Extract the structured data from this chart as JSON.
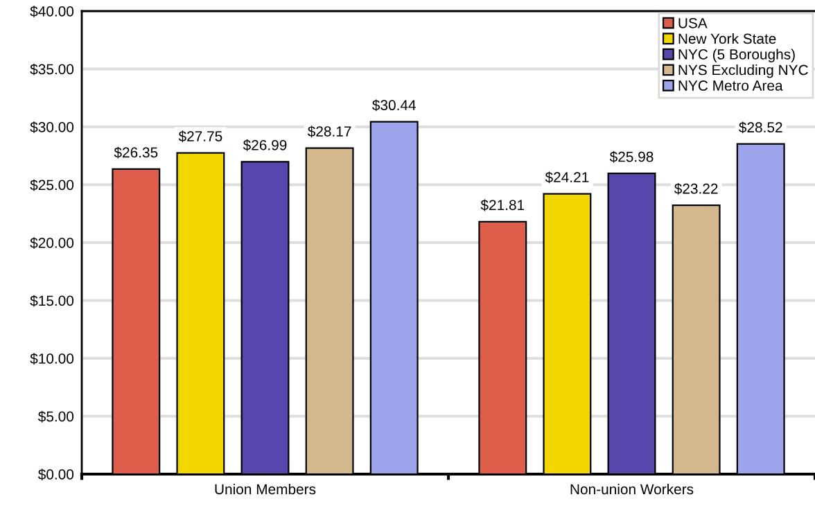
{
  "chart_data": {
    "type": "bar",
    "categories": [
      "Union Members",
      "Non-union Workers"
    ],
    "series": [
      {
        "name": "USA",
        "color": "#dc5e4b",
        "values": [
          26.35,
          21.81
        ],
        "value_labels": [
          "$26.35",
          "$21.81"
        ]
      },
      {
        "name": "New York State",
        "color": "#f2d600",
        "values": [
          27.75,
          24.21
        ],
        "value_labels": [
          "$27.75",
          "$24.21"
        ]
      },
      {
        "name": "NYC (5 Boroughs)",
        "color": "#5747ad",
        "values": [
          26.99,
          25.98
        ],
        "value_labels": [
          "$26.99",
          "$25.98"
        ]
      },
      {
        "name": "NYS Excluding NYC",
        "color": "#d2b88c",
        "values": [
          28.17,
          23.22
        ],
        "value_labels": [
          "$28.17",
          "$23.22"
        ]
      },
      {
        "name": "NYC Metro Area",
        "color": "#9ca4ec",
        "values": [
          30.44,
          28.52
        ],
        "value_labels": [
          "$30.44",
          "$28.52"
        ]
      }
    ],
    "ylim": [
      0,
      40
    ],
    "yticks": [
      {
        "value": 0,
        "label": "$0.00"
      },
      {
        "value": 5,
        "label": "$5.00"
      },
      {
        "value": 10,
        "label": "$10.00"
      },
      {
        "value": 15,
        "label": "$15.00"
      },
      {
        "value": 20,
        "label": "$20.00"
      },
      {
        "value": 25,
        "label": "$25.00"
      },
      {
        "value": 30,
        "label": "$30.00"
      },
      {
        "value": 35,
        "label": "$35.00"
      },
      {
        "value": 40,
        "label": "$40.00"
      }
    ],
    "grid": "y",
    "legend": "top right"
  }
}
